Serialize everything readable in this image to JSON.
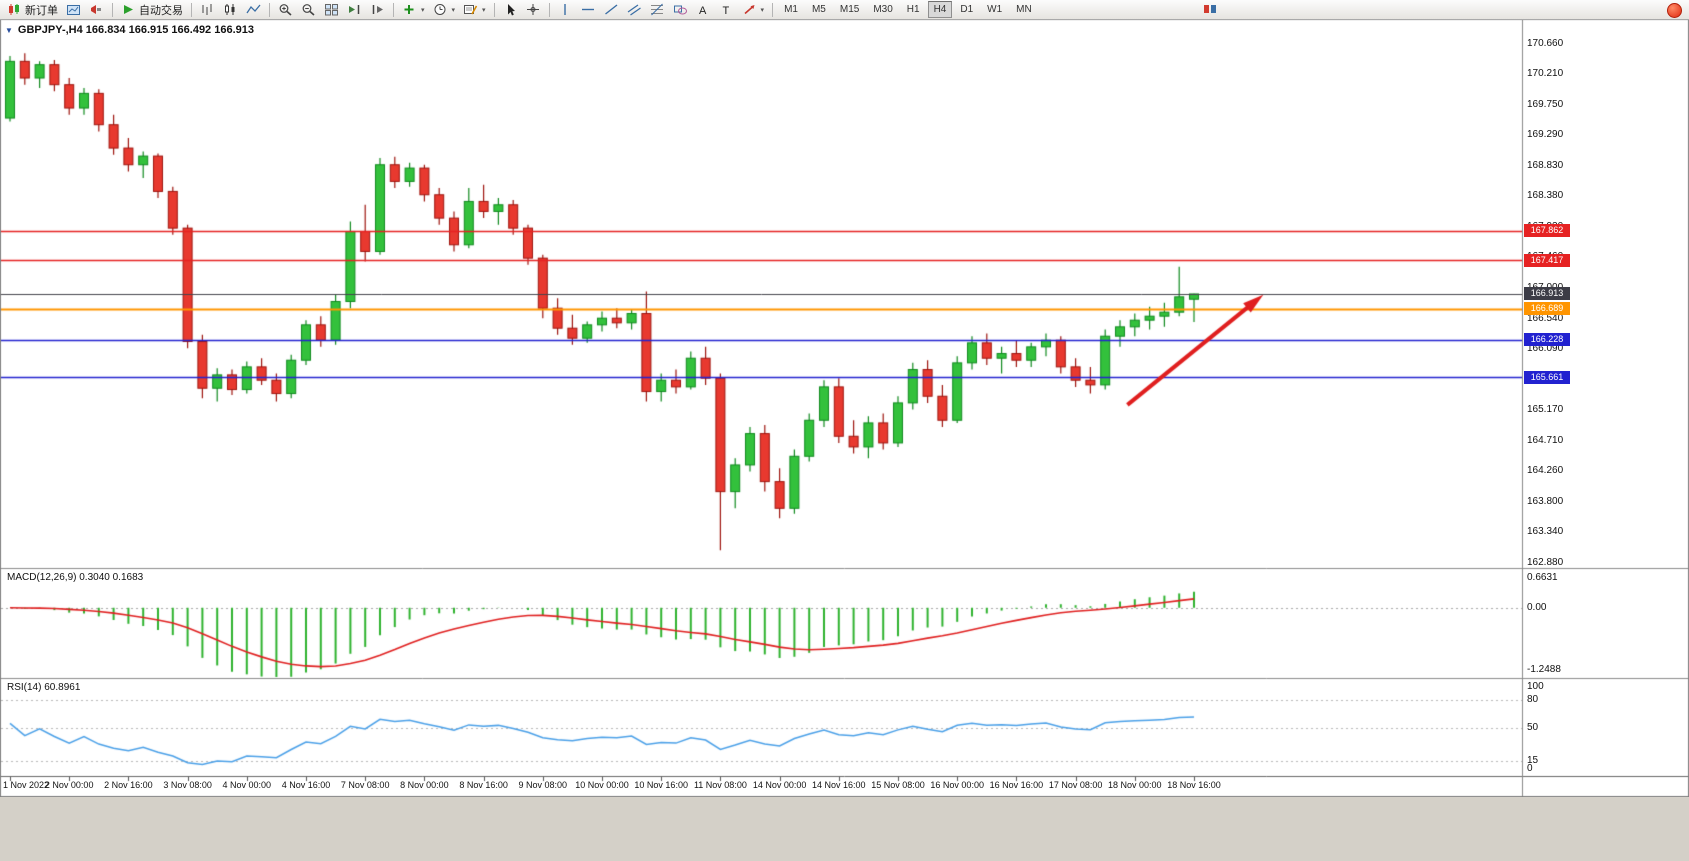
{
  "toolbar": {
    "items": [
      {
        "name": "new-order-button",
        "icon": "new-order",
        "label": "新订单"
      },
      {
        "name": "market-watch-button",
        "icon": "market-watch"
      },
      {
        "name": "alerts-button",
        "icon": "alerts"
      },
      {
        "sep": true
      },
      {
        "name": "autotrading-button",
        "icon": "play",
        "label": "自动交易"
      },
      {
        "sep": true
      },
      {
        "name": "bar-chart-button",
        "icon": "bars"
      },
      {
        "name": "candlestick-chart-button",
        "icon": "candles"
      },
      {
        "name": "line-chart-button",
        "icon": "linechart"
      },
      {
        "sep": true
      },
      {
        "name": "zoom-in-button",
        "icon": "zoom-in"
      },
      {
        "name": "zoom-out-button",
        "icon": "zoom-out"
      },
      {
        "name": "tile-windows-button",
        "icon": "tile"
      },
      {
        "name": "auto-scroll-button",
        "icon": "autoscroll"
      },
      {
        "name": "chart-shift-button",
        "icon": "shift"
      },
      {
        "sep": true
      },
      {
        "name": "indicators-button",
        "icon": "indicators",
        "caret": true
      },
      {
        "name": "periods-button",
        "icon": "clock",
        "caret": true
      },
      {
        "name": "templates-button",
        "icon": "template",
        "caret": true
      },
      {
        "sep": true
      },
      {
        "name": "cursor-button",
        "icon": "cursor"
      },
      {
        "name": "crosshair-button",
        "icon": "crosshair"
      },
      {
        "sep": true
      },
      {
        "name": "vertical-line-button",
        "icon": "vline"
      },
      {
        "name": "horizontal-line-button",
        "icon": "hline"
      },
      {
        "name": "trendline-button",
        "icon": "trendline"
      },
      {
        "name": "channel-button",
        "icon": "channel"
      },
      {
        "name": "fibonacci-button",
        "icon": "fibo"
      },
      {
        "name": "shapes-button",
        "icon": "shapes"
      },
      {
        "name": "text-button",
        "icon": "text"
      },
      {
        "name": "text-label-button",
        "icon": "label"
      },
      {
        "name": "arrows-button",
        "icon": "arrows",
        "caret": true
      },
      {
        "sep": true
      }
    ],
    "timeframes": {
      "items": [
        "M1",
        "M5",
        "M15",
        "M30",
        "H1",
        "H4",
        "D1",
        "W1",
        "MN"
      ],
      "active": "H4"
    }
  },
  "icons": {
    "one_click_glyph": "▼",
    "caret_glyph": "▾"
  },
  "chart": {
    "title": {
      "text": "GBPJPY-,H4 166.834 166.915 166.492 166.913"
    },
    "price_axis": {
      "labels": [
        "170.660",
        "170.210",
        "169.750",
        "169.290",
        "168.830",
        "168.380",
        "167.920",
        "167.460",
        "167.000",
        "166.540",
        "166.090",
        "165.630",
        "165.170",
        "164.710",
        "164.260",
        "163.800",
        "163.340",
        "162.880"
      ]
    },
    "hlines": [
      {
        "value": "167.862",
        "color": "#e62222",
        "width": 1.4
      },
      {
        "value": "167.417",
        "color": "#e62222",
        "width": 1.4
      },
      {
        "value": "166.689",
        "color": "#ff9500",
        "width": 2.2
      },
      {
        "value": "166.228",
        "color": "#2222d0",
        "width": 1.6
      },
      {
        "value": "165.661",
        "color": "#2222d0",
        "width": 1.6
      }
    ],
    "bid": {
      "value": "166.913",
      "line_color": "#44444c",
      "tag_color": "#3c3c46"
    },
    "colors": {
      "background": "#ffffff",
      "up": "#33c13c",
      "up_edge": "#0f8a1e",
      "down": "#e8392f",
      "down_edge": "#9e140e",
      "arrow": "#e01f1f"
    }
  },
  "indicators": {
    "macd": {
      "text": "MACD(12,26,9) 0.3040 0.1683",
      "label": "MACD(12,26,9)",
      "value_main": "0.3040",
      "value_signal": "0.1683",
      "scale": [
        "0.6631",
        "0.00",
        "-1.2488"
      ],
      "range": [
        -1.2488,
        0.6631
      ],
      "histogram_color": "#2fb32f",
      "signal_color": "#e02020"
    },
    "rsi": {
      "text": "RSI(14) 60.8961",
      "label": "RSI(14)",
      "value": "60.8961",
      "scale": [
        "100",
        "80",
        "50",
        "15",
        "0"
      ],
      "levels": [
        80,
        50,
        15
      ],
      "line_color": "#4aa0e8"
    }
  },
  "chart_data": {
    "type": "candlestick",
    "symbol": "GBPJPY-",
    "timeframe": "H4",
    "last_candle": {
      "open": 166.834,
      "high": 166.915,
      "low": 166.492,
      "close": 166.913
    },
    "x_labels": [
      "1 Nov 2022",
      "2 Nov 00:00",
      "2 Nov 16:00",
      "3 Nov 08:00",
      "4 Nov 00:00",
      "4 Nov 16:00",
      "7 Nov 08:00",
      "8 Nov 00:00",
      "8 Nov 16:00",
      "9 Nov 08:00",
      "10 Nov 00:00",
      "10 Nov 16:00",
      "11 Nov 08:00",
      "14 Nov 00:00",
      "14 Nov 16:00",
      "15 Nov 08:00",
      "16 Nov 00:00",
      "16 Nov 16:00",
      "17 Nov 08:00",
      "18 Nov 00:00",
      "18 Nov 16:00"
    ],
    "x_label_every_n_candles": 4,
    "ylim_visible": [
      162.82,
      170.99
    ],
    "candles": [
      [
        169.55,
        170.48,
        169.5,
        170.4
      ],
      [
        170.4,
        170.52,
        170.05,
        170.15
      ],
      [
        170.15,
        170.4,
        170.0,
        170.35
      ],
      [
        170.35,
        170.42,
        169.95,
        170.05
      ],
      [
        170.05,
        170.15,
        169.6,
        169.7
      ],
      [
        169.7,
        170.0,
        169.6,
        169.92
      ],
      [
        169.92,
        169.98,
        169.35,
        169.45
      ],
      [
        169.45,
        169.6,
        169.0,
        169.1
      ],
      [
        169.1,
        169.25,
        168.75,
        168.85
      ],
      [
        168.85,
        169.05,
        168.65,
        168.98
      ],
      [
        168.98,
        169.02,
        168.35,
        168.45
      ],
      [
        168.45,
        168.52,
        167.8,
        167.9
      ],
      [
        167.9,
        167.95,
        166.1,
        166.2
      ],
      [
        166.2,
        166.3,
        165.35,
        165.5
      ],
      [
        165.5,
        165.8,
        165.3,
        165.7
      ],
      [
        165.7,
        165.78,
        165.4,
        165.48
      ],
      [
        165.48,
        165.9,
        165.42,
        165.82
      ],
      [
        165.82,
        165.95,
        165.55,
        165.62
      ],
      [
        165.62,
        165.72,
        165.3,
        165.42
      ],
      [
        165.42,
        166.0,
        165.35,
        165.92
      ],
      [
        165.92,
        166.52,
        165.85,
        166.45
      ],
      [
        166.45,
        166.58,
        166.12,
        166.22
      ],
      [
        166.22,
        166.9,
        166.15,
        166.8
      ],
      [
        166.8,
        168.0,
        166.7,
        167.85
      ],
      [
        167.85,
        168.25,
        167.4,
        167.55
      ],
      [
        167.55,
        168.95,
        167.5,
        168.85
      ],
      [
        168.85,
        168.97,
        168.5,
        168.6
      ],
      [
        168.6,
        168.88,
        168.52,
        168.8
      ],
      [
        168.8,
        168.85,
        168.3,
        168.4
      ],
      [
        168.4,
        168.5,
        167.95,
        168.05
      ],
      [
        168.05,
        168.15,
        167.55,
        167.65
      ],
      [
        167.65,
        168.5,
        167.6,
        168.3
      ],
      [
        168.3,
        168.55,
        168.05,
        168.15
      ],
      [
        168.15,
        168.35,
        167.95,
        168.25
      ],
      [
        168.25,
        168.32,
        167.8,
        167.9
      ],
      [
        167.9,
        167.95,
        167.35,
        167.45
      ],
      [
        167.45,
        167.5,
        166.55,
        166.7
      ],
      [
        166.7,
        166.85,
        166.3,
        166.4
      ],
      [
        166.4,
        166.6,
        166.15,
        166.25
      ],
      [
        166.25,
        166.5,
        166.18,
        166.45
      ],
      [
        166.45,
        166.65,
        166.35,
        166.55
      ],
      [
        166.55,
        166.7,
        166.4,
        166.48
      ],
      [
        166.48,
        166.68,
        166.38,
        166.62
      ],
      [
        166.62,
        166.95,
        165.3,
        165.45
      ],
      [
        165.45,
        165.72,
        165.3,
        165.62
      ],
      [
        165.62,
        165.78,
        165.42,
        165.52
      ],
      [
        165.52,
        166.05,
        165.48,
        165.95
      ],
      [
        165.95,
        166.12,
        165.55,
        165.65
      ],
      [
        165.65,
        165.72,
        163.07,
        163.95
      ],
      [
        163.95,
        164.45,
        163.7,
        164.35
      ],
      [
        164.35,
        164.92,
        164.25,
        164.82
      ],
      [
        164.82,
        164.95,
        163.95,
        164.1
      ],
      [
        164.1,
        164.3,
        163.55,
        163.7
      ],
      [
        163.7,
        164.58,
        163.62,
        164.48
      ],
      [
        164.48,
        165.12,
        164.4,
        165.02
      ],
      [
        165.02,
        165.62,
        164.92,
        165.52
      ],
      [
        165.52,
        165.65,
        164.68,
        164.78
      ],
      [
        164.78,
        165.02,
        164.52,
        164.62
      ],
      [
        164.62,
        165.08,
        164.45,
        164.98
      ],
      [
        164.98,
        165.12,
        164.58,
        164.68
      ],
      [
        164.68,
        165.38,
        164.62,
        165.28
      ],
      [
        165.28,
        165.88,
        165.18,
        165.78
      ],
      [
        165.78,
        165.92,
        165.28,
        165.38
      ],
      [
        165.38,
        165.55,
        164.92,
        165.02
      ],
      [
        165.02,
        165.98,
        164.98,
        165.88
      ],
      [
        165.88,
        166.28,
        165.78,
        166.18
      ],
      [
        166.18,
        166.32,
        165.85,
        165.95
      ],
      [
        165.95,
        166.12,
        165.72,
        166.02
      ],
      [
        166.02,
        166.22,
        165.82,
        165.92
      ],
      [
        165.92,
        166.18,
        165.82,
        166.12
      ],
      [
        166.12,
        166.32,
        165.98,
        166.22
      ],
      [
        166.22,
        166.28,
        165.72,
        165.82
      ],
      [
        165.82,
        165.95,
        165.52,
        165.62
      ],
      [
        165.62,
        165.82,
        165.42,
        165.55
      ],
      [
        165.55,
        166.38,
        165.48,
        166.28
      ],
      [
        166.28,
        166.52,
        166.12,
        166.42
      ],
      [
        166.42,
        166.62,
        166.28,
        166.52
      ],
      [
        166.52,
        166.72,
        166.38,
        166.58
      ],
      [
        166.58,
        166.78,
        166.42,
        166.64
      ],
      [
        166.64,
        167.32,
        166.58,
        166.87
      ],
      [
        166.834,
        166.915,
        166.492,
        166.913
      ]
    ],
    "overlays": {
      "horizontal_lines": [
        167.862,
        167.417,
        166.689,
        166.228,
        165.661
      ],
      "bid_price": 166.913,
      "arrow": {
        "from_index": 75.5,
        "from_price": 165.25,
        "to_index": 84,
        "to_price": 166.78,
        "color": "#e01f1f"
      }
    },
    "indicators": [
      {
        "name": "MACD",
        "params": [
          12,
          26,
          9
        ],
        "current_main": 0.304,
        "current_signal": 0.1683,
        "scale": [
          0.6631,
          0.0,
          -1.2488
        ]
      },
      {
        "name": "RSI",
        "params": [
          14
        ],
        "current": 60.8961,
        "scale": [
          100,
          80,
          50,
          15,
          0
        ]
      }
    ]
  }
}
